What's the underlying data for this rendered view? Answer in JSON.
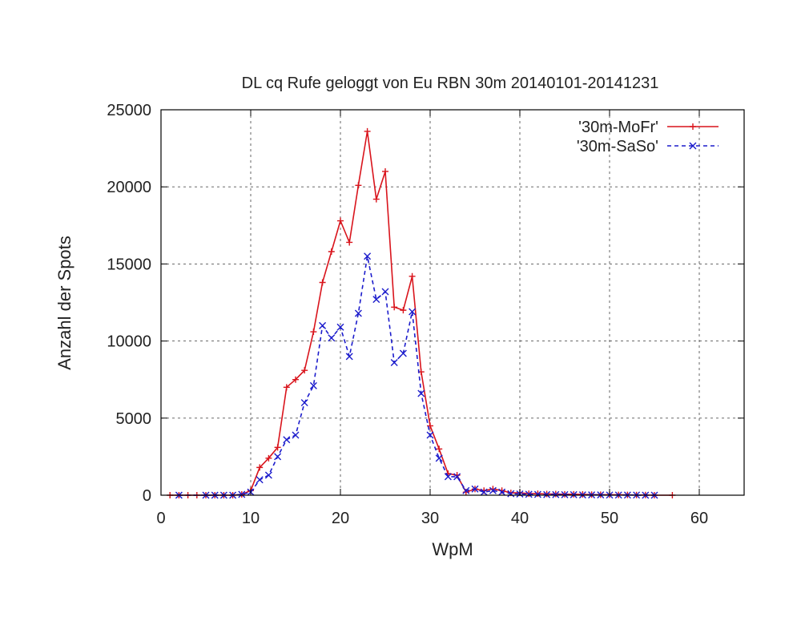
{
  "chart_data": {
    "type": "line",
    "title": "DL cq Rufe geloggt von Eu RBN 30m 20140101-20141231",
    "xlabel": "WpM",
    "ylabel": "Anzahl der Spots",
    "xlim": [
      0,
      65
    ],
    "ylim": [
      0,
      25000
    ],
    "xticks": [
      0,
      10,
      20,
      30,
      40,
      50,
      60
    ],
    "yticks": [
      0,
      5000,
      10000,
      15000,
      20000,
      25000
    ],
    "xtick_labels": [
      "0",
      "10",
      "20",
      "30",
      "40",
      "50",
      "60"
    ],
    "ytick_labels": [
      "0",
      "5000",
      "10000",
      "15000",
      "20000",
      "25000"
    ],
    "grid": true,
    "legend_position": "top-right",
    "series": [
      {
        "name": "'30m-MoFr'",
        "color": "#d9141c",
        "line_style": "solid",
        "marker": "plus",
        "x": [
          1,
          2,
          3,
          4,
          5,
          6,
          7,
          8,
          9,
          10,
          11,
          12,
          13,
          14,
          15,
          16,
          17,
          18,
          19,
          20,
          21,
          22,
          23,
          24,
          25,
          26,
          27,
          28,
          29,
          30,
          31,
          32,
          33,
          34,
          35,
          36,
          37,
          38,
          39,
          40,
          41,
          42,
          43,
          44,
          45,
          46,
          47,
          48,
          49,
          50,
          51,
          52,
          53,
          54,
          55,
          57
        ],
        "y": [
          0,
          0,
          0,
          0,
          0,
          0,
          0,
          0,
          50,
          300,
          1800,
          2400,
          3100,
          7000,
          7500,
          8100,
          10600,
          13800,
          15800,
          17800,
          16400,
          20100,
          23600,
          19200,
          21000,
          12200,
          12000,
          14200,
          8000,
          4500,
          3000,
          1400,
          1300,
          200,
          400,
          300,
          400,
          300,
          150,
          150,
          100,
          100,
          80,
          80,
          60,
          60,
          50,
          40,
          30,
          30,
          20,
          20,
          10,
          10,
          0,
          0
        ]
      },
      {
        "name": "'30m-SaSo'",
        "color": "#1c1ccc",
        "line_style": "dashed",
        "marker": "x",
        "x": [
          2,
          5,
          6,
          7,
          8,
          9,
          10,
          11,
          12,
          13,
          14,
          15,
          16,
          17,
          18,
          19,
          20,
          21,
          22,
          23,
          24,
          25,
          26,
          27,
          28,
          29,
          30,
          31,
          32,
          33,
          34,
          35,
          36,
          37,
          38,
          39,
          40,
          41,
          42,
          43,
          44,
          45,
          46,
          47,
          48,
          49,
          50,
          51,
          52,
          53,
          54,
          55
        ],
        "y": [
          0,
          0,
          0,
          0,
          0,
          50,
          200,
          1000,
          1300,
          2500,
          3600,
          3900,
          6000,
          7100,
          11000,
          10200,
          10900,
          9000,
          11800,
          15500,
          12700,
          13200,
          8600,
          9200,
          11900,
          6600,
          3900,
          2400,
          1200,
          1200,
          300,
          400,
          200,
          300,
          200,
          100,
          80,
          60,
          50,
          40,
          40,
          30,
          30,
          20,
          20,
          20,
          10,
          10,
          10,
          10,
          0,
          0
        ]
      }
    ]
  }
}
